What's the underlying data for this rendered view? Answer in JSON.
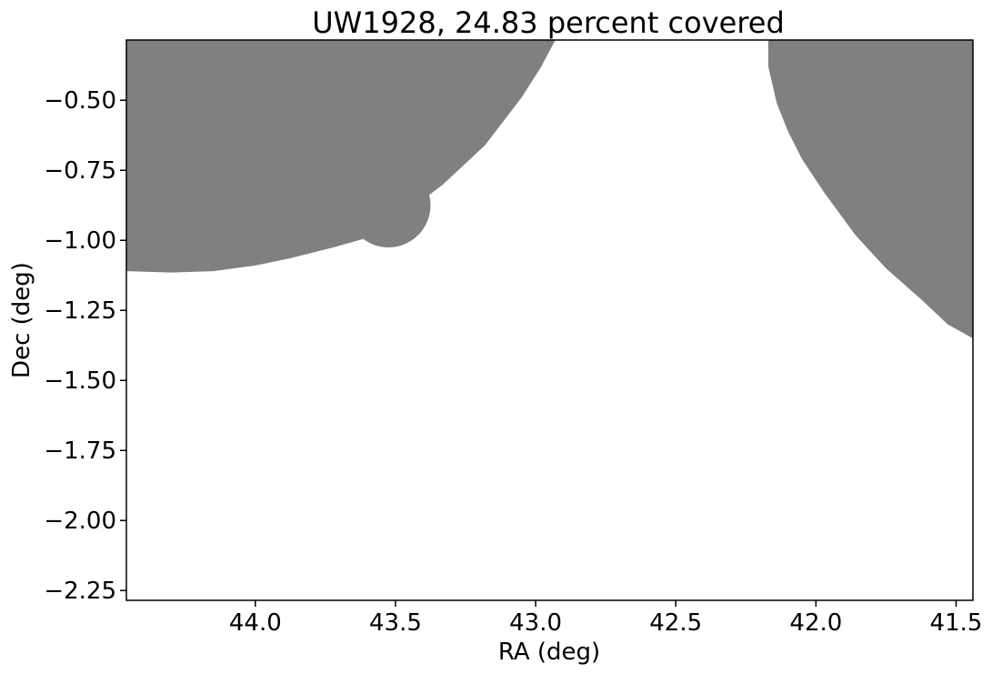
{
  "chart_data": {
    "type": "area",
    "title": "UW1928, 24.83 percent covered",
    "xlabel": "RA (deg)",
    "ylabel": "Dec (deg)",
    "xlim": [
      44.46,
      41.44
    ],
    "ylim": [
      -2.285,
      -0.285
    ],
    "x_ticks": [
      44.0,
      43.5,
      43.0,
      42.5,
      42.0,
      41.5
    ],
    "x_tick_labels": [
      "44.0",
      "43.5",
      "43.0",
      "42.5",
      "42.0",
      "41.5"
    ],
    "y_ticks": [
      -0.5,
      -0.75,
      -1.0,
      -1.25,
      -1.5,
      -1.75,
      -2.0,
      -2.25
    ],
    "y_tick_labels": [
      "−0.50",
      "−0.75",
      "−1.00",
      "−1.25",
      "−1.50",
      "−1.75",
      "−2.00",
      "−2.25"
    ],
    "grid": false,
    "colors": {
      "fill": "#808080",
      "background": "#ffffff",
      "axis": "#000000"
    },
    "regions": [
      {
        "shape": "polygon",
        "points": [
          [
            44.46,
            -0.285
          ],
          [
            42.93,
            -0.285
          ],
          [
            42.98,
            -0.38
          ],
          [
            43.05,
            -0.49
          ],
          [
            43.18,
            -0.66
          ],
          [
            43.33,
            -0.8
          ],
          [
            43.48,
            -0.915
          ],
          [
            43.58,
            -0.985
          ],
          [
            43.72,
            -1.025
          ],
          [
            43.88,
            -1.065
          ],
          [
            44.0,
            -1.09
          ],
          [
            44.15,
            -1.11
          ],
          [
            44.3,
            -1.115
          ],
          [
            44.46,
            -1.11
          ]
        ]
      },
      {
        "shape": "circle",
        "center": [
          43.525,
          -0.875
        ],
        "radius": 0.15
      },
      {
        "shape": "polygon",
        "points": [
          [
            42.17,
            -0.285
          ],
          [
            41.44,
            -0.285
          ],
          [
            41.44,
            -1.35
          ],
          [
            41.53,
            -1.3
          ],
          [
            41.62,
            -1.215
          ],
          [
            41.75,
            -1.1
          ],
          [
            41.86,
            -0.98
          ],
          [
            41.97,
            -0.83
          ],
          [
            42.05,
            -0.71
          ],
          [
            42.1,
            -0.61
          ],
          [
            42.14,
            -0.51
          ],
          [
            42.17,
            -0.38
          ]
        ]
      }
    ]
  }
}
